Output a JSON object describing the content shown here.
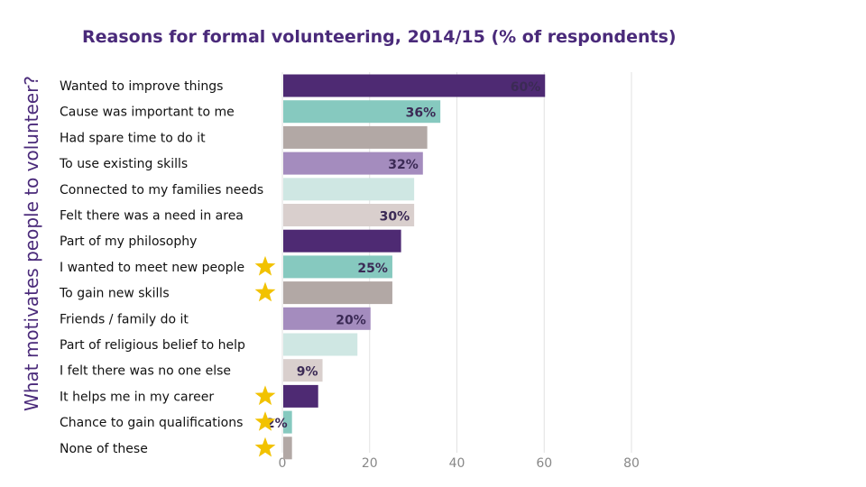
{
  "side_title": "What motivates people to volunteer?",
  "chart_data": {
    "type": "bar",
    "orientation": "horizontal",
    "title": "Reasons for formal volunteering, 2014/15 (% of respondents)",
    "xlabel": "",
    "ylabel": "",
    "xlim": [
      0,
      80
    ],
    "xticks": [
      "0",
      "20",
      "40",
      "60",
      "80"
    ],
    "grid": true,
    "categories": [
      "Wanted to improve things",
      "Cause was important to me",
      "Had spare time to do it",
      "To use existing skills",
      "Connected to my families needs",
      "Felt there was a need in area",
      "Part of my philosophy",
      "I wanted to meet new people",
      "To gain new skills",
      "Friends / family do it",
      "Part of religious belief to help",
      "I felt there was no one else",
      "It helps me in my career",
      "Chance to gain qualifications",
      "None of these"
    ],
    "values": [
      60,
      36,
      33,
      32,
      30,
      30,
      27,
      25,
      25,
      20,
      17,
      9,
      8,
      2,
      2
    ],
    "data_labels": [
      "60%",
      "36%",
      "",
      "32%",
      "",
      "30%",
      "",
      "25%",
      "",
      "20%",
      "",
      "9%",
      "",
      "2%",
      ""
    ],
    "colors": [
      "#4e2a73",
      "#86c9bf",
      "#b2a8a5",
      "#a48cbe",
      "#cfe7e3",
      "#d9cfcd",
      "#4e2a73",
      "#86c9bf",
      "#b2a8a5",
      "#a48cbe",
      "#cfe7e3",
      "#d9cfcd",
      "#4e2a73",
      "#86c9bf",
      "#b2a8a5"
    ],
    "starred": [
      false,
      false,
      false,
      false,
      false,
      false,
      false,
      true,
      true,
      false,
      false,
      false,
      true,
      true,
      true
    ],
    "star_color": "#f2c200"
  }
}
